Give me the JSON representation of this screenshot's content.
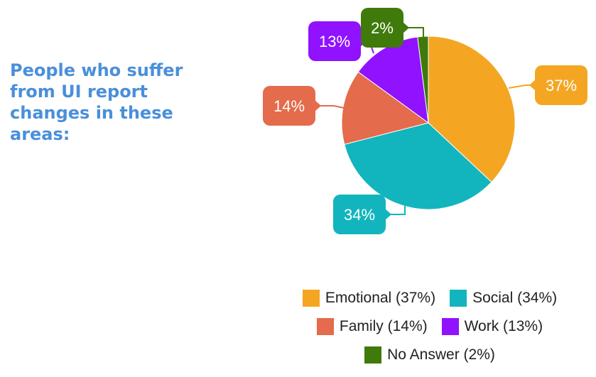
{
  "title": "People who suffer from UI report changes in these areas:",
  "chart_data": {
    "type": "pie",
    "categories": [
      "Emotional",
      "Social",
      "Family",
      "Work",
      "No Answer"
    ],
    "values": [
      37,
      34,
      14,
      13,
      2
    ],
    "data_labels": [
      "37%",
      "34%",
      "14%",
      "13%",
      "2%"
    ],
    "colors": [
      "#f4a623",
      "#12b5bd",
      "#e46b4b",
      "#9012fe",
      "#3f7a0b"
    ],
    "legend_labels": [
      "Emotional (37%)",
      "Social (34%)",
      "Family (14%)",
      "Work (13%)",
      "No Answer (2%)"
    ],
    "legend_position": "bottom",
    "start_angle": "top, clockwise"
  }
}
